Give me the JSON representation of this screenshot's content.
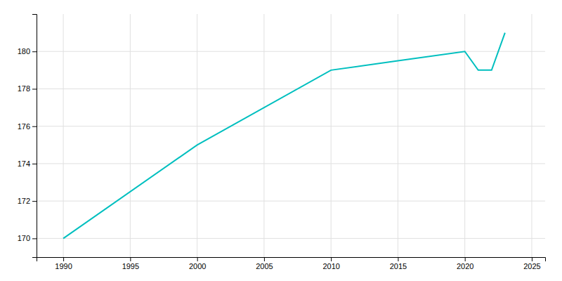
{
  "chart_data": {
    "type": "line",
    "x": [
      1990,
      2000,
      2010,
      2015,
      2020,
      2021,
      2022,
      2023
    ],
    "values": [
      170,
      175,
      179,
      179.5,
      180,
      179,
      179,
      181
    ],
    "color": "#00BFBF",
    "xlim": [
      1988,
      2026
    ],
    "ylim": [
      169,
      182
    ],
    "xticks": [
      1990,
      1995,
      2000,
      2005,
      2010,
      2015,
      2020,
      2025
    ],
    "yticks": [
      170,
      172,
      174,
      176,
      178,
      180
    ],
    "grid": true
  }
}
